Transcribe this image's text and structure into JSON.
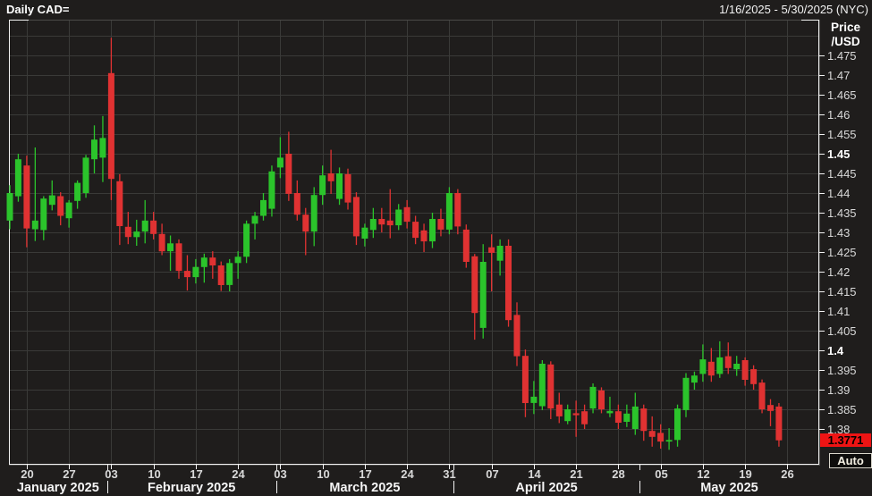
{
  "header": {
    "title": "Daily CAD=",
    "date_range": "1/16/2025 - 5/30/2025 (NYC)"
  },
  "y_axis": {
    "title_line1": "Price",
    "title_line2": "/USD",
    "tick_labels": [
      "1.475",
      "1.47",
      "1.465",
      "1.46",
      "1.455",
      "1.45",
      "1.445",
      "1.44",
      "1.435",
      "1.43",
      "1.425",
      "1.42",
      "1.415",
      "1.41",
      "1.405",
      "1.4",
      "1.395",
      "1.39",
      "1.385",
      "1.38"
    ],
    "bold_tick_labels": [
      "1.45",
      "1.4"
    ],
    "last_price_label": "1.3771"
  },
  "controls": {
    "auto_label": "Auto"
  },
  "colors": {
    "background": "#1f1d1c",
    "grid": "#3a3a38",
    "up": "#2bc42b",
    "down": "#e03232",
    "axis_text": "#d9d9d9",
    "axis_text_bright": "#ffffff",
    "border_bright": "#f2f2f2",
    "border_dim": "#4a4a48",
    "last_price_bg": "#ee1414",
    "last_price_text": "#000000",
    "month_text": "#f5f5f5"
  },
  "chart_data": {
    "type": "candlestick",
    "symbol": "CAD=",
    "interval": "Daily",
    "title": "Daily CAD=",
    "date_range": "1/16/2025 - 5/30/2025 (NYC)",
    "ylabel": "Price /USD",
    "ylim": [
      1.3747,
      1.4795
    ],
    "y_tick_step": 0.005,
    "grid": true,
    "legend": "none",
    "last_close": 1.3771,
    "x_axis": {
      "week_tick_labels": [
        "20",
        "27",
        "03",
        "10",
        "17",
        "24",
        "03",
        "10",
        "17",
        "24",
        "31",
        "07",
        "14",
        "21",
        "28",
        "05",
        "12",
        "19",
        "26"
      ],
      "week_tick_indices": [
        2,
        7,
        12,
        17,
        22,
        27,
        32,
        37,
        42,
        47,
        52,
        57,
        62,
        67,
        72,
        77,
        82,
        87,
        92
      ],
      "month_labels": [
        "January 2025",
        "February 2025",
        "March 2025",
        "April 2025",
        "May 2025"
      ],
      "month_boundary_indices": [
        11.5,
        31.5,
        52.5,
        74.5
      ]
    },
    "candle_columns": [
      "date",
      "open",
      "high",
      "low",
      "close"
    ],
    "candles": [
      [
        "2025-01-16",
        1.433,
        1.442,
        1.4308,
        1.44
      ],
      [
        "2025-01-17",
        1.4392,
        1.45,
        1.4378,
        1.4486
      ],
      [
        "2025-01-20",
        1.447,
        1.4495,
        1.4262,
        1.431
      ],
      [
        "2025-01-21",
        1.4308,
        1.4516,
        1.4278,
        1.433
      ],
      [
        "2025-01-22",
        1.4306,
        1.4392,
        1.428,
        1.4386
      ],
      [
        "2025-01-23",
        1.437,
        1.4432,
        1.4356,
        1.4394
      ],
      [
        "2025-01-24",
        1.4392,
        1.4402,
        1.4318,
        1.4342
      ],
      [
        "2025-01-27",
        1.4336,
        1.4382,
        1.4312,
        1.4376
      ],
      [
        "2025-01-28",
        1.438,
        1.4432,
        1.436,
        1.4426
      ],
      [
        "2025-01-29",
        1.44,
        1.4497,
        1.4388,
        1.449
      ],
      [
        "2025-01-30",
        1.4486,
        1.4572,
        1.445,
        1.4536
      ],
      [
        "2025-01-31",
        1.449,
        1.4596,
        1.4428,
        1.454
      ],
      [
        "2025-02-03",
        1.4705,
        1.4795,
        1.4382,
        1.4436
      ],
      [
        "2025-02-04",
        1.443,
        1.4448,
        1.4268,
        1.4316
      ],
      [
        "2025-02-05",
        1.4314,
        1.4352,
        1.427,
        1.4288
      ],
      [
        "2025-02-06",
        1.4288,
        1.4332,
        1.4266,
        1.4302
      ],
      [
        "2025-02-07",
        1.4302,
        1.4382,
        1.4272,
        1.433
      ],
      [
        "2025-02-10",
        1.433,
        1.4352,
        1.4282,
        1.4296
      ],
      [
        "2025-02-11",
        1.4296,
        1.4322,
        1.4242,
        1.4252
      ],
      [
        "2025-02-12",
        1.4252,
        1.4292,
        1.4202,
        1.4272
      ],
      [
        "2025-02-13",
        1.4272,
        1.4282,
        1.4182,
        1.4202
      ],
      [
        "2025-02-14",
        1.4202,
        1.4242,
        1.4152,
        1.4186
      ],
      [
        "2025-02-17",
        1.4186,
        1.4232,
        1.417,
        1.4212
      ],
      [
        "2025-02-18",
        1.4212,
        1.4246,
        1.4172,
        1.4236
      ],
      [
        "2025-02-19",
        1.4236,
        1.4252,
        1.4182,
        1.4216
      ],
      [
        "2025-02-20",
        1.4216,
        1.4226,
        1.4151,
        1.4166
      ],
      [
        "2025-02-21",
        1.4166,
        1.4232,
        1.415,
        1.4222
      ],
      [
        "2025-02-24",
        1.4222,
        1.4252,
        1.4182,
        1.4238
      ],
      [
        "2025-02-25",
        1.4238,
        1.433,
        1.4222,
        1.4322
      ],
      [
        "2025-02-26",
        1.4322,
        1.4352,
        1.4282,
        1.4342
      ],
      [
        "2025-02-27",
        1.4342,
        1.44,
        1.433,
        1.4382
      ],
      [
        "2025-02-28",
        1.436,
        1.447,
        1.434,
        1.4455
      ],
      [
        "2025-03-03",
        1.4465,
        1.4542,
        1.4438,
        1.449
      ],
      [
        "2025-03-04",
        1.45,
        1.4556,
        1.438,
        1.4398
      ],
      [
        "2025-03-05",
        1.44,
        1.4432,
        1.433,
        1.4345
      ],
      [
        "2025-03-06",
        1.4345,
        1.4362,
        1.4242,
        1.4302
      ],
      [
        "2025-03-07",
        1.4302,
        1.4415,
        1.4265,
        1.4395
      ],
      [
        "2025-03-10",
        1.4395,
        1.447,
        1.437,
        1.4445
      ],
      [
        "2025-03-11",
        1.445,
        1.451,
        1.4398,
        1.443
      ],
      [
        "2025-03-12",
        1.4385,
        1.4465,
        1.437,
        1.445
      ],
      [
        "2025-03-13",
        1.4448,
        1.4462,
        1.4358,
        1.4376
      ],
      [
        "2025-03-14",
        1.439,
        1.4402,
        1.4268,
        1.429
      ],
      [
        "2025-03-17",
        1.4284,
        1.4322,
        1.4264,
        1.4312
      ],
      [
        "2025-03-18",
        1.4306,
        1.4362,
        1.4286,
        1.4334
      ],
      [
        "2025-03-19",
        1.4334,
        1.4362,
        1.43,
        1.432
      ],
      [
        "2025-03-20",
        1.433,
        1.441,
        1.4285,
        1.4318
      ],
      [
        "2025-03-21",
        1.4318,
        1.4372,
        1.4306,
        1.4358
      ],
      [
        "2025-03-24",
        1.4364,
        1.4382,
        1.431,
        1.4327
      ],
      [
        "2025-03-25",
        1.4327,
        1.4342,
        1.427,
        1.4286
      ],
      [
        "2025-03-26",
        1.4305,
        1.4322,
        1.425,
        1.4277
      ],
      [
        "2025-03-27",
        1.4277,
        1.435,
        1.426,
        1.4334
      ],
      [
        "2025-03-28",
        1.4334,
        1.436,
        1.429,
        1.4307
      ],
      [
        "2025-03-31",
        1.4307,
        1.4415,
        1.4295,
        1.44
      ],
      [
        "2025-04-01",
        1.44,
        1.441,
        1.4295,
        1.4315
      ],
      [
        "2025-04-02",
        1.4307,
        1.432,
        1.421,
        1.4225
      ],
      [
        "2025-04-03",
        1.4239,
        1.4245,
        1.4027,
        1.4095
      ],
      [
        "2025-04-04",
        1.4057,
        1.427,
        1.403,
        1.4225
      ],
      [
        "2025-04-07",
        1.4262,
        1.4295,
        1.415,
        1.4248
      ],
      [
        "2025-04-08",
        1.4228,
        1.4282,
        1.419,
        1.4266
      ],
      [
        "2025-04-09",
        1.4266,
        1.4282,
        1.406,
        1.4077
      ],
      [
        "2025-04-10",
        1.409,
        1.4122,
        1.396,
        1.3985
      ],
      [
        "2025-04-11",
        1.3986,
        1.4002,
        1.383,
        1.3866
      ],
      [
        "2025-04-14",
        1.3866,
        1.3922,
        1.3838,
        1.3882
      ],
      [
        "2025-04-15",
        1.3858,
        1.3975,
        1.3848,
        1.3966
      ],
      [
        "2025-04-16",
        1.3964,
        1.3972,
        1.3825,
        1.3852
      ],
      [
        "2025-04-17",
        1.3862,
        1.3892,
        1.3815,
        1.3832
      ],
      [
        "2025-04-18",
        1.382,
        1.3862,
        1.3812,
        1.385
      ],
      [
        "2025-04-21",
        1.384,
        1.3872,
        1.378,
        1.3835
      ],
      [
        "2025-04-22",
        1.3845,
        1.3862,
        1.38,
        1.3812
      ],
      [
        "2025-04-23",
        1.3852,
        1.3916,
        1.384,
        1.3907
      ],
      [
        "2025-04-24",
        1.3898,
        1.3906,
        1.384,
        1.385
      ],
      [
        "2025-04-25",
        1.384,
        1.3882,
        1.383,
        1.3846
      ],
      [
        "2025-04-28",
        1.3845,
        1.3862,
        1.38,
        1.3816
      ],
      [
        "2025-04-29",
        1.3818,
        1.3862,
        1.3805,
        1.3839
      ],
      [
        "2025-04-30",
        1.38,
        1.3892,
        1.3785,
        1.3857
      ],
      [
        "2025-05-01",
        1.3852,
        1.3862,
        1.377,
        1.3795
      ],
      [
        "2025-05-02",
        1.3795,
        1.3832,
        1.3755,
        1.378
      ],
      [
        "2025-05-05",
        1.379,
        1.3812,
        1.375,
        1.3768
      ],
      [
        "2025-05-06",
        1.3768,
        1.3802,
        1.3747,
        1.3772
      ],
      [
        "2025-05-07",
        1.3772,
        1.3862,
        1.3755,
        1.3852
      ],
      [
        "2025-05-08",
        1.3848,
        1.3942,
        1.383,
        1.393
      ],
      [
        "2025-05-09",
        1.3918,
        1.3946,
        1.39,
        1.3936
      ],
      [
        "2025-05-12",
        1.394,
        1.4015,
        1.392,
        1.3977
      ],
      [
        "2025-05-13",
        1.3971,
        1.4006,
        1.392,
        1.3936
      ],
      [
        "2025-05-14",
        1.394,
        1.4023,
        1.393,
        1.3982
      ],
      [
        "2025-05-15",
        1.3985,
        1.402,
        1.394,
        1.3955
      ],
      [
        "2025-05-16",
        1.3952,
        1.3986,
        1.3935,
        1.3966
      ],
      [
        "2025-05-19",
        1.3975,
        1.3982,
        1.391,
        1.3925
      ],
      [
        "2025-05-20",
        1.3952,
        1.3962,
        1.39,
        1.3914
      ],
      [
        "2025-05-21",
        1.3918,
        1.3926,
        1.384,
        1.385
      ],
      [
        "2025-05-22",
        1.3861,
        1.3876,
        1.3807,
        1.3846
      ],
      [
        "2025-05-23",
        1.3857,
        1.3866,
        1.3755,
        1.3771
      ]
    ]
  }
}
